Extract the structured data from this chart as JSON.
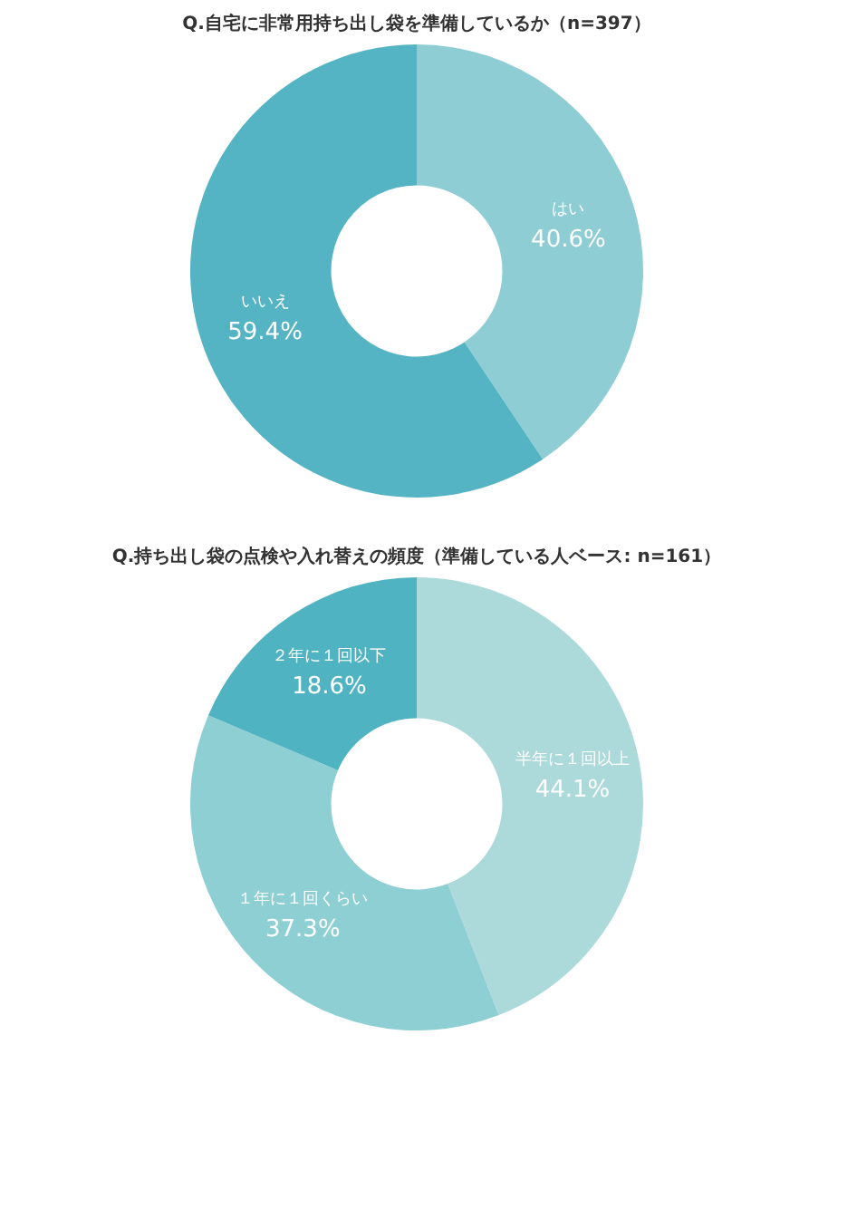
{
  "chart_data": [
    {
      "type": "donut",
      "title": "Q.自宅に非常用持ち出し袋を準備しているか（n=397）",
      "categories": [
        "はい",
        "いいえ"
      ],
      "values": [
        40.6,
        59.4
      ],
      "colors": [
        "#8ecdd3",
        "#55b4c3"
      ],
      "value_labels": [
        "40.6%",
        "59.4%"
      ],
      "legend": false
    },
    {
      "type": "donut",
      "title": "Q.持ち出し袋の点検や入れ替えの頻度（準備している人ベース: n=161）",
      "categories": [
        "半年に１回以上",
        "１年に１回くらい",
        "２年に１回以下"
      ],
      "values": [
        44.1,
        37.3,
        18.6
      ],
      "colors": [
        "#acd9da",
        "#8ecfd4",
        "#50b3c1"
      ],
      "value_labels": [
        "44.1%",
        "37.3%",
        "18.6%"
      ],
      "legend": false
    }
  ]
}
